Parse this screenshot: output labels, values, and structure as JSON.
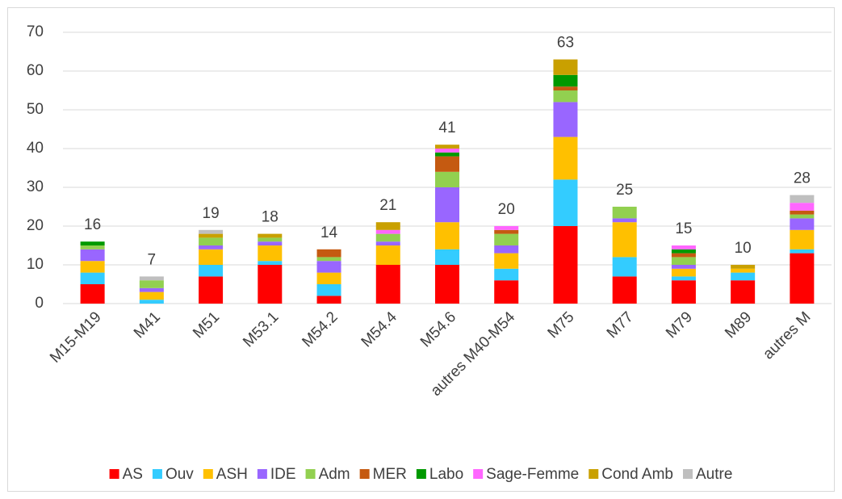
{
  "chart_data": {
    "type": "stacked_bar",
    "categories": [
      "M15-M19",
      "M41",
      "M51",
      "M53.1",
      "M54.2",
      "M54.4",
      "M54.6",
      "autres M40-M54",
      "M75",
      "M77",
      "M79",
      "M89",
      "autres M"
    ],
    "series": [
      {
        "name": "AS",
        "color": "#ff0000",
        "values": [
          5,
          0,
          7,
          10,
          2,
          10,
          10,
          6,
          20,
          7,
          6,
          6,
          13
        ]
      },
      {
        "name": "Ouv",
        "color": "#33ccff",
        "values": [
          3,
          1,
          3,
          1,
          3,
          0,
          4,
          3,
          12,
          5,
          1,
          2,
          1
        ]
      },
      {
        "name": "ASH",
        "color": "#ffc000",
        "values": [
          3,
          2,
          4,
          4,
          3,
          5,
          7,
          4,
          11,
          9,
          2,
          1,
          5
        ]
      },
      {
        "name": "IDE",
        "color": "#9966ff",
        "values": [
          3,
          1,
          1,
          1,
          3,
          1,
          9,
          2,
          9,
          1,
          1,
          0,
          3
        ]
      },
      {
        "name": "Adm",
        "color": "#92d050",
        "values": [
          1,
          2,
          2,
          1,
          1,
          2,
          4,
          3,
          3,
          3,
          2,
          0,
          1
        ]
      },
      {
        "name": "MER",
        "color": "#c55a11",
        "values": [
          0,
          0,
          0,
          0,
          2,
          0,
          4,
          1,
          1,
          0,
          1,
          0,
          1
        ]
      },
      {
        "name": "Labo",
        "color": "#009900",
        "values": [
          1,
          0,
          0,
          0,
          0,
          0,
          1,
          0,
          3,
          0,
          1,
          0,
          0
        ]
      },
      {
        "name": "Sage-Femme",
        "color": "#ff66ff",
        "values": [
          0,
          0,
          0,
          0,
          0,
          1,
          1,
          1,
          0,
          0,
          1,
          0,
          2
        ]
      },
      {
        "name": "Cond Amb",
        "color": "#c9a000",
        "values": [
          0,
          0,
          1,
          1,
          0,
          2,
          1,
          0,
          4,
          0,
          0,
          1,
          0
        ]
      },
      {
        "name": "Autre",
        "color": "#bfbfbf",
        "values": [
          0,
          1,
          1,
          0,
          0,
          0,
          0,
          0,
          0,
          0,
          0,
          0,
          2
        ]
      }
    ],
    "totals": [
      16,
      7,
      19,
      18,
      14,
      21,
      41,
      20,
      63,
      25,
      15,
      10,
      28
    ],
    "ylim": [
      0,
      70
    ],
    "yticks": [
      0,
      10,
      20,
      30,
      40,
      50,
      60,
      70
    ],
    "grid": true,
    "legend": "bottom"
  }
}
